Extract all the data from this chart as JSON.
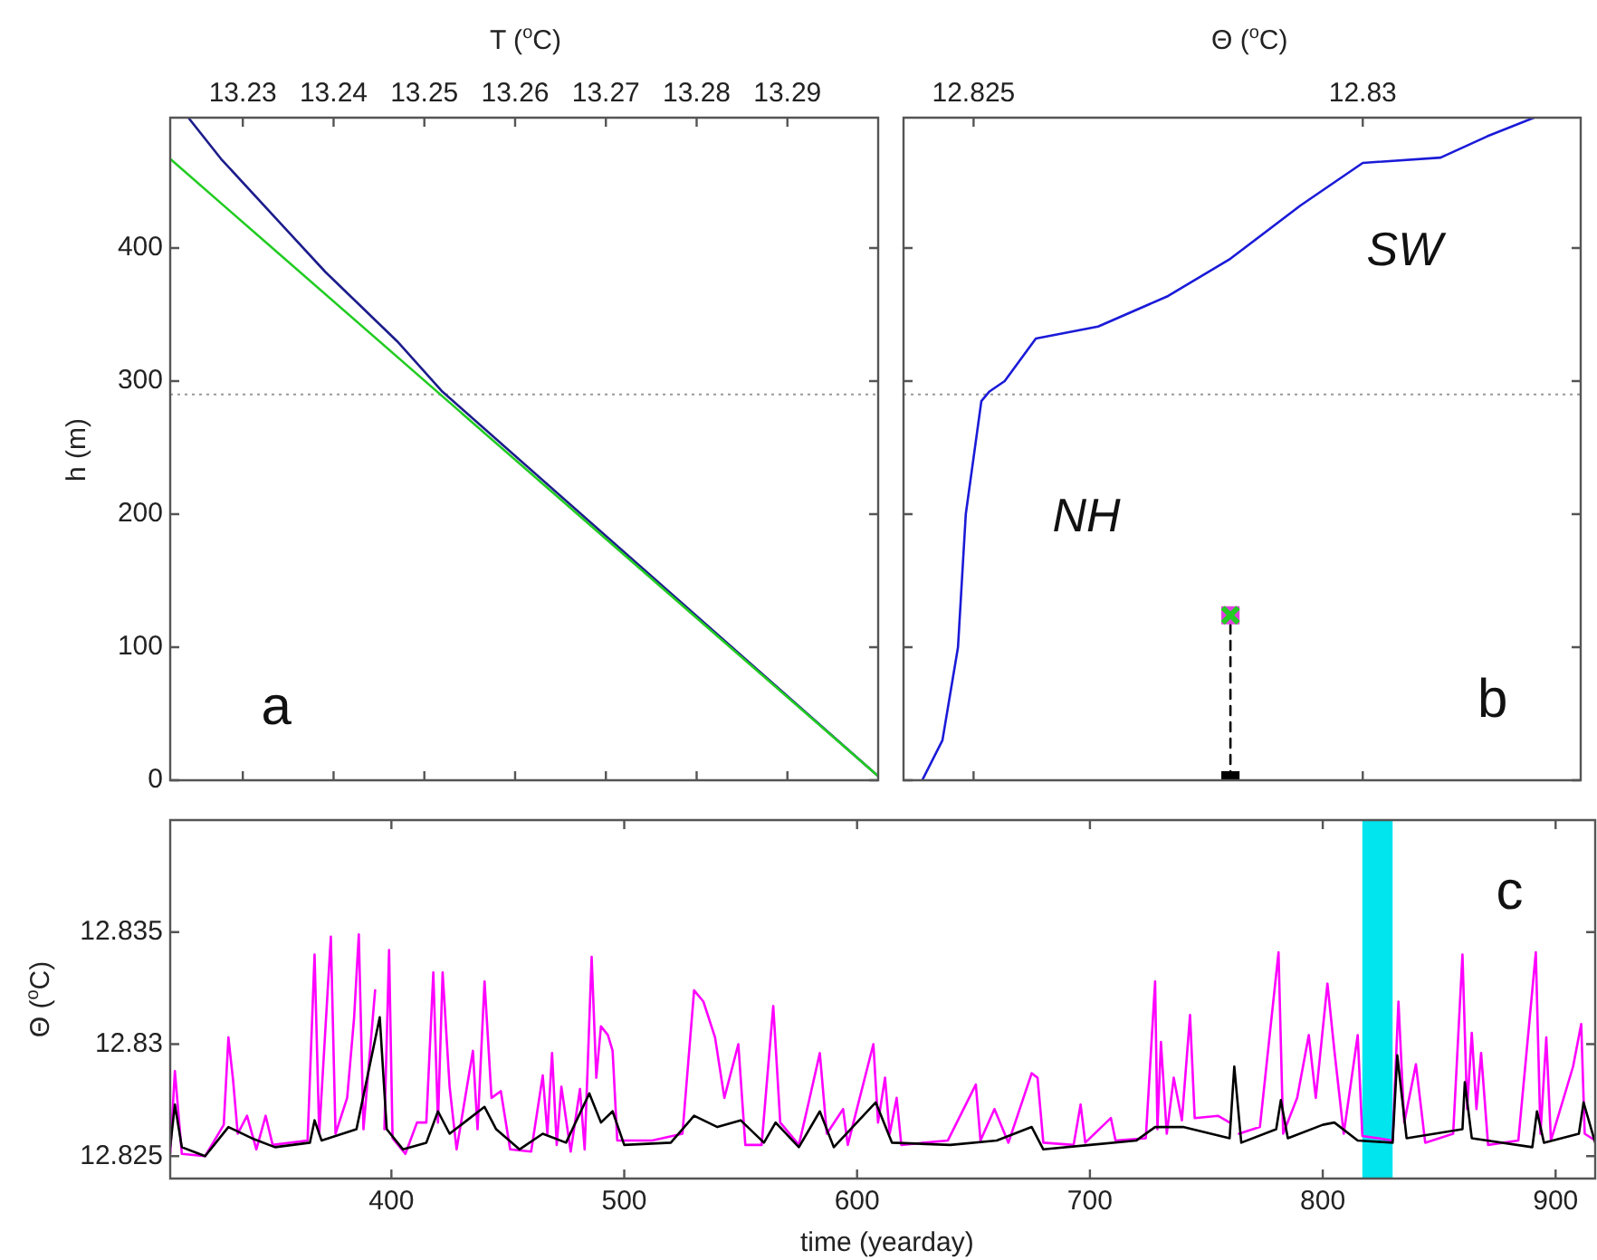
{
  "chart_data": [
    {
      "type": "line",
      "xlabel": "T ($^{o}$C)",
      "ylabel": "h (m)",
      "xlim": [
        13.222,
        13.3
      ],
      "xticks": [
        13.23,
        13.24,
        13.25,
        13.26,
        13.27,
        13.28,
        13.29
      ],
      "ylim": [
        0,
        498
      ],
      "yticks": [
        0,
        100,
        200,
        300,
        400
      ],
      "grid": false,
      "legend": false,
      "marker": "none",
      "ref_lines": [
        {
          "axis": "y",
          "value": 290,
          "color": "#999999",
          "line_style": "dotted"
        }
      ],
      "annotations": [
        "a"
      ],
      "series": [
        {
          "color": "#1c1c8c",
          "x": [
            13.224,
            13.2276,
            13.2391,
            13.247,
            13.252,
            13.3
          ],
          "values": [
            498,
            467,
            382,
            330,
            292,
            3
          ]
        },
        {
          "color": "#22cc22",
          "x": [
            13.222,
            13.3
          ],
          "values": [
            467,
            3
          ]
        }
      ]
    },
    {
      "type": "line",
      "xlabel": "Θ ($^{o}$C)",
      "xlim": [
        12.8241,
        12.8328
      ],
      "xticks": [
        12.825,
        12.83
      ],
      "ylim": [
        0,
        498
      ],
      "yticks": [
        0,
        100,
        200,
        300,
        400
      ],
      "tick_labels": "x",
      "grid": false,
      "legend": false,
      "marker": "none",
      "ref_lines": [
        {
          "axis": "y",
          "value": 290,
          "color": "#999999",
          "line_style": "dotted"
        }
      ],
      "annotations": [
        "NH",
        "SW",
        "b"
      ],
      "series": [
        {
          "color": "#1a1ad8",
          "x": [
            12.82434,
            12.8246,
            12.8248,
            12.8249,
            12.8251,
            12.8252,
            12.8254,
            12.8258,
            12.8266,
            12.8275,
            12.8283,
            12.8292,
            12.83,
            12.831,
            12.8316,
            12.8322
          ],
          "values": [
            0,
            30,
            100,
            200,
            285,
            292,
            300,
            332,
            341,
            364,
            392,
            432,
            464,
            468,
            484,
            498
          ]
        },
        {
          "color": "#000000",
          "line_style": "dashed",
          "x": [
            12.8283,
            12.8283
          ],
          "values": [
            0,
            124
          ]
        },
        {
          "type": "scatter",
          "color": "#e040e0",
          "marker": "square",
          "x": [
            12.8283
          ],
          "values": [
            124
          ]
        },
        {
          "type": "scatter",
          "color": "#22cc22",
          "marker": "cross",
          "x": [
            12.8283
          ],
          "values": [
            124
          ]
        },
        {
          "type": "scatter",
          "color": "#000000",
          "marker": "square",
          "x": [
            12.8283
          ],
          "values": [
            0
          ]
        }
      ]
    },
    {
      "type": "line",
      "xlabel": "time (yearday)",
      "ylabel": "Θ ($^{o}$C)",
      "xlim": [
        305,
        917
      ],
      "xticks": [
        400,
        500,
        600,
        700,
        800,
        900
      ],
      "ylim": [
        12.824,
        12.84
      ],
      "yticks": [
        12.825,
        12.83,
        12.835
      ],
      "grid": false,
      "legend": false,
      "marker": "none",
      "bands": [
        {
          "axis": "x",
          "from": 817,
          "to": 830,
          "color": "#00e5ee"
        }
      ],
      "annotations": [
        "c"
      ],
      "series": [
        {
          "color": "#ff00ff",
          "x": [
            305,
            307,
            310,
            320,
            328,
            330,
            332,
            334,
            338,
            342,
            346,
            349,
            364,
            367,
            369,
            374,
            376,
            381,
            384,
            386,
            388,
            393,
            395.3,
            397,
            399,
            400.5,
            406,
            411,
            415,
            418,
            420,
            422,
            425,
            428,
            435,
            437,
            440,
            443,
            447,
            451,
            460,
            465,
            467,
            469,
            471,
            473,
            477,
            481,
            483,
            486,
            488,
            490,
            493,
            495,
            497,
            512,
            525,
            530,
            534,
            539,
            543,
            549,
            552,
            559,
            564,
            567,
            575,
            579,
            584,
            587,
            594,
            596,
            607,
            609,
            612,
            614,
            617,
            619,
            639,
            651,
            653,
            659,
            665,
            675,
            677.5,
            680,
            693,
            696,
            698,
            709,
            711,
            724,
            728,
            729,
            730.5,
            733,
            736,
            739.5,
            743,
            745,
            755,
            760,
            762,
            764,
            773,
            781,
            783,
            789,
            794,
            797,
            802,
            805,
            809,
            815,
            817,
            830,
            832.5,
            835,
            840,
            844,
            856,
            860,
            862,
            864,
            866,
            868,
            871,
            884,
            891.5,
            893.5,
            896,
            898,
            907.5,
            911,
            912.5,
            917
          ],
          "values": [
            12.8251,
            12.8288,
            12.8251,
            12.825,
            12.8264,
            12.8303,
            12.8284,
            12.826,
            12.8268,
            12.8253,
            12.8268,
            12.8255,
            12.8257,
            12.834,
            12.826,
            12.8348,
            12.826,
            12.8276,
            12.8312,
            12.8349,
            12.8262,
            12.8324,
            null,
            12.8262,
            12.8342,
            12.8258,
            12.8251,
            12.8265,
            12.8265,
            12.8332,
            12.8265,
            12.8332,
            12.8281,
            12.8253,
            12.8297,
            12.8262,
            12.8328,
            12.8276,
            12.8279,
            12.8253,
            12.8252,
            12.8286,
            12.826,
            12.8296,
            12.8255,
            12.8281,
            12.8252,
            12.828,
            12.8253,
            12.8339,
            12.8285,
            12.8308,
            12.8304,
            12.8297,
            12.8257,
            12.8257,
            12.826,
            12.8324,
            12.8319,
            12.8303,
            12.8276,
            12.83,
            12.8255,
            12.8255,
            12.8317,
            12.8265,
            12.8255,
            12.8273,
            12.8296,
            12.826,
            12.8271,
            12.8255,
            12.83,
            12.8265,
            12.8285,
            12.826,
            12.8276,
            12.8255,
            12.8257,
            12.8282,
            12.8257,
            12.8271,
            12.8256,
            12.8287,
            12.8285,
            12.8256,
            12.8255,
            12.8273,
            12.8256,
            12.8267,
            12.8257,
            12.8258,
            12.8328,
            12.8262,
            12.8301,
            12.826,
            12.8285,
            12.8266,
            12.8313,
            12.8267,
            12.8268,
            12.8265,
            null,
            12.826,
            12.8263,
            12.8341,
            12.826,
            12.8276,
            12.8304,
            12.8276,
            12.8327,
            12.8297,
            12.826,
            12.8304,
            12.8259,
            12.8257,
            12.8319,
            12.8265,
            12.8291,
            12.8256,
            12.826,
            12.834,
            12.8271,
            12.8305,
            12.8271,
            12.8296,
            12.8255,
            12.8257,
            12.8341,
            12.826,
            12.8303,
            12.8257,
            12.829,
            12.8309,
            12.826,
            12.8257
          ]
        },
        {
          "color": "#000000",
          "x": [
            305,
            307,
            310,
            320,
            330,
            340,
            350,
            365,
            367,
            370,
            385,
            395,
            398,
            405,
            415,
            420,
            425,
            440,
            445,
            455,
            465,
            475,
            485,
            490,
            495,
            500,
            520,
            530,
            540,
            550,
            560,
            565,
            575,
            584,
            590,
            608,
            615,
            640,
            660,
            675,
            680,
            700,
            720,
            728,
            740,
            760,
            762,
            765,
            780,
            782,
            785,
            800,
            805,
            815,
            830,
            832,
            836,
            860,
            861,
            864,
            890,
            892,
            895,
            910,
            912,
            917
          ],
          "values": [
            12.8254,
            12.8273,
            12.8254,
            12.825,
            12.8263,
            12.8258,
            12.8254,
            12.8256,
            12.8266,
            12.8257,
            12.8262,
            12.8312,
            12.8262,
            12.8253,
            12.8256,
            12.827,
            12.826,
            12.8272,
            12.8262,
            12.8253,
            12.826,
            12.8256,
            12.8278,
            12.8265,
            12.827,
            12.8255,
            12.8256,
            12.8268,
            12.8263,
            12.8266,
            12.8256,
            12.8265,
            12.8254,
            12.827,
            12.8254,
            12.8274,
            12.8256,
            12.8255,
            12.8257,
            12.8263,
            12.8253,
            12.8255,
            12.8257,
            12.8263,
            12.8263,
            12.8258,
            12.829,
            12.8256,
            12.8262,
            12.8275,
            12.8258,
            12.8264,
            12.8265,
            12.8257,
            12.8256,
            12.8295,
            12.8258,
            12.8262,
            12.8283,
            12.8258,
            12.8254,
            12.827,
            12.8256,
            12.826,
            12.8274,
            12.8256
          ]
        }
      ]
    }
  ]
}
